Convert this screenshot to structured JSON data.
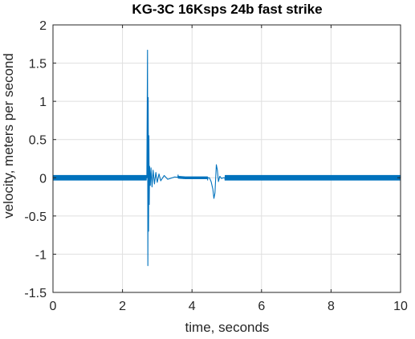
{
  "chart_data": {
    "type": "line",
    "title": "KG-3C 16Ksps 24b fast strike",
    "xlabel": "time, seconds",
    "ylabel": "velocity, meters per second",
    "xlim": [
      0,
      10
    ],
    "ylim": [
      -1.5,
      2
    ],
    "xticks": [
      0,
      2,
      4,
      6,
      8,
      10
    ],
    "yticks": [
      -1.5,
      -1,
      -0.5,
      0,
      0.5,
      1,
      1.5,
      2
    ],
    "xtick_labels": [
      "0",
      "2",
      "4",
      "6",
      "8",
      "10"
    ],
    "ytick_labels": [
      "-1.5",
      "-1",
      "-0.5",
      "0",
      "0.5",
      "1",
      "1.5",
      "2"
    ],
    "grid": true,
    "series_color": "#0072BD",
    "series": [
      {
        "noise_band": 0.03,
        "x": [
          0.0,
          2.7,
          2.72,
          2.73,
          2.74,
          2.75,
          2.76,
          2.77,
          2.78,
          2.8,
          2.82,
          2.85,
          2.88,
          2.92,
          2.96,
          3.0,
          3.05,
          3.1,
          3.2,
          3.3,
          3.5,
          3.8,
          4.2,
          4.5,
          4.55,
          4.6,
          4.63,
          4.66,
          4.7,
          4.73,
          4.76,
          4.8,
          4.85,
          4.9,
          5.0,
          6.0,
          8.0,
          10.0
        ],
        "y": [
          0.0,
          0.0,
          1.67,
          -1.15,
          1.05,
          -0.7,
          0.55,
          -0.35,
          0.15,
          -0.1,
          0.13,
          -0.12,
          0.1,
          -0.08,
          0.07,
          -0.06,
          0.05,
          -0.04,
          0.03,
          -0.02,
          0.01,
          0.0,
          0.0,
          0.0,
          -0.05,
          -0.15,
          -0.27,
          -0.2,
          0.17,
          0.1,
          -0.05,
          0.02,
          -0.01,
          0.0,
          0.0,
          0.0,
          0.0,
          0.0
        ]
      }
    ]
  }
}
